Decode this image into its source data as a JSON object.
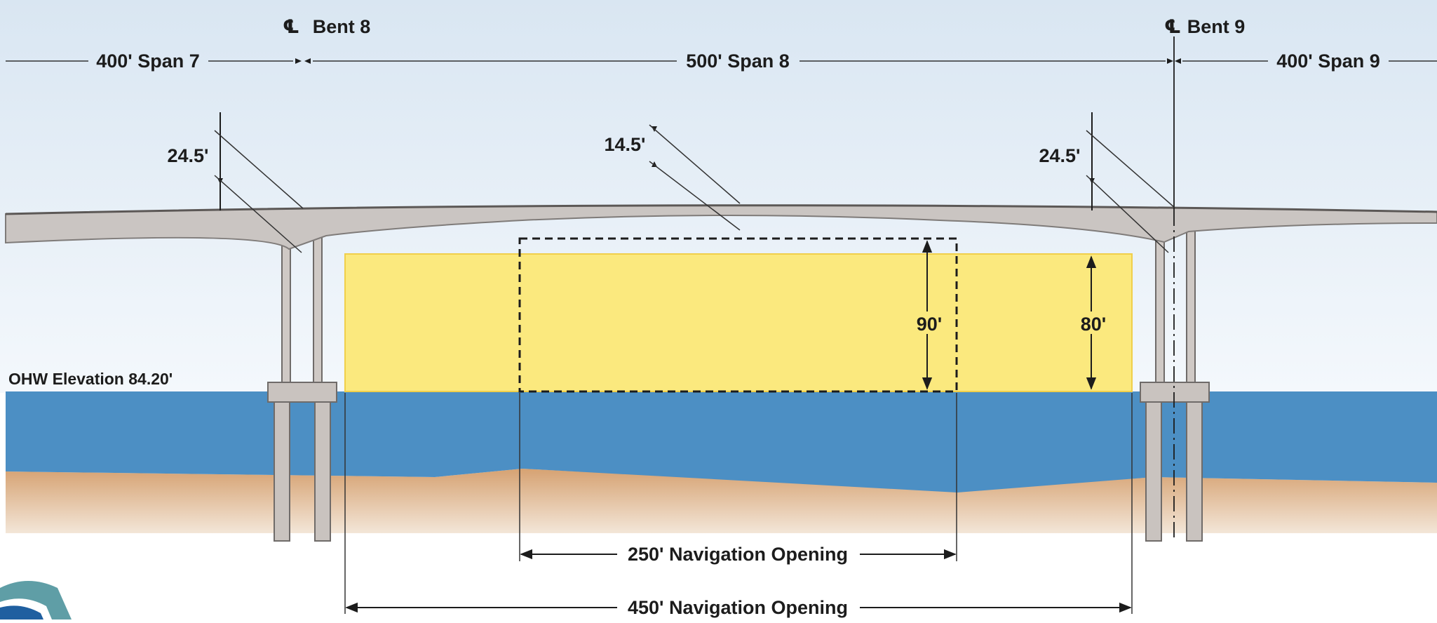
{
  "spans": {
    "span7": "400' Span 7",
    "span8": "500' Span 8",
    "span9": "400' Span 9"
  },
  "bents": {
    "symbol": "℄",
    "bent8": "Bent 8",
    "bent9": "Bent 9"
  },
  "depths": {
    "left": "24.5'",
    "mid": "14.5'",
    "right": "24.5'"
  },
  "clearances": {
    "channel": "90'",
    "full": "80'"
  },
  "water": {
    "ohw_label": "OHW Elevation 84.20'"
  },
  "openings": {
    "narrow": "250' Navigation Opening",
    "wide": "450' Navigation Opening"
  },
  "colors": {
    "sky_top": "#dde9f4",
    "sky_bottom": "#f3f7fb",
    "deck": "#c9c4c1",
    "deck_edge": "#8c8886",
    "pier": "#c8c2be",
    "water": "#4c8fc4",
    "ground": "#d8a877",
    "clearance": "#fbe97e",
    "clearance_edge": "#f2d24a",
    "logo_teal": "#5f9ea6",
    "logo_blue": "#1f5fa0"
  }
}
